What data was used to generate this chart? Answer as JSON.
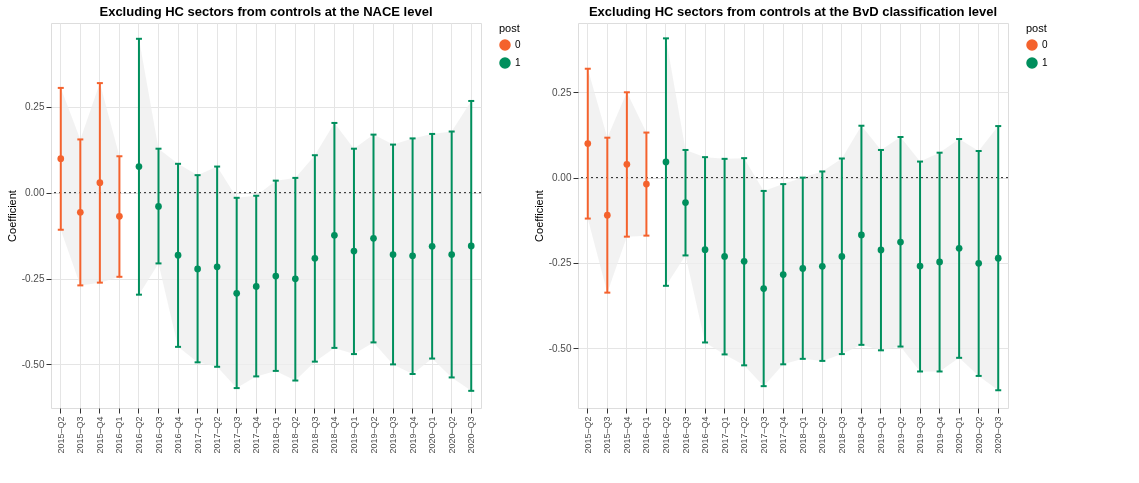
{
  "chart_data": [
    {
      "type": "scatter",
      "title": "Excluding HC sectors from controls at the NACE level",
      "ylabel": "Coefficient",
      "legend_title": "post",
      "legend": "right",
      "grid": true,
      "marker": "circle",
      "categories": [
        "2015–Q2",
        "2015–Q3",
        "2015–Q4",
        "2016–Q1",
        "2016–Q2",
        "2016–Q3",
        "2016–Q4",
        "2017–Q1",
        "2017–Q2",
        "2017–Q3",
        "2017–Q4",
        "2018–Q1",
        "2018–Q2",
        "2018–Q3",
        "2018–Q4",
        "2019–Q1",
        "2019–Q2",
        "2019–Q3",
        "2019–Q4",
        "2020–Q1",
        "2020–Q2",
        "2020–Q3"
      ],
      "ylim": [
        -0.627,
        0.494
      ],
      "yticks": [
        0.25,
        {
          "value": 0,
          "label": "0.00"
        },
        {
          "value": -0.25,
          "label": "-0.25"
        },
        {
          "value": -0.5,
          "label": "-0.50"
        }
      ],
      "ref_lines": [
        {
          "axis": "y",
          "value": 0,
          "line_style": "dotted"
        }
      ],
      "series": [
        {
          "name": "0",
          "color": "#f4622d",
          "values": [
            0.099,
            -0.057,
            0.029,
            -0.069,
            null,
            null,
            null,
            null,
            null,
            null,
            null,
            null,
            null,
            null,
            null,
            null,
            null,
            null,
            null,
            null,
            null,
            null
          ],
          "errors": [
            [
              -0.108,
              0.305
            ],
            [
              -0.27,
              0.155
            ],
            [
              -0.262,
              0.319
            ],
            [
              -0.245,
              0.106
            ],
            null,
            null,
            null,
            null,
            null,
            null,
            null,
            null,
            null,
            null,
            null,
            null,
            null,
            null,
            null,
            null,
            null,
            null
          ],
          "lower": [
            -0.108,
            -0.27,
            -0.262,
            -0.245,
            null,
            null,
            null,
            null,
            null,
            null,
            null,
            null,
            null,
            null,
            null,
            null,
            null,
            null,
            null,
            null,
            null,
            null
          ],
          "upper": [
            0.305,
            0.155,
            0.319,
            0.106,
            null,
            null,
            null,
            null,
            null,
            null,
            null,
            null,
            null,
            null,
            null,
            null,
            null,
            null,
            null,
            null,
            null,
            null
          ]
        },
        {
          "name": "1",
          "color": "#008f5d",
          "values": [
            null,
            null,
            null,
            null,
            0.076,
            -0.04,
            -0.182,
            -0.222,
            -0.216,
            -0.293,
            -0.273,
            -0.243,
            -0.251,
            -0.191,
            -0.124,
            -0.17,
            -0.133,
            -0.18,
            -0.184,
            -0.156,
            -0.18,
            -0.155
          ],
          "errors": [
            null,
            null,
            null,
            null,
            [
              -0.297,
              0.448
            ],
            [
              -0.206,
              0.128
            ],
            [
              -0.449,
              0.084
            ],
            [
              -0.494,
              0.051
            ],
            [
              -0.507,
              0.076
            ],
            [
              -0.569,
              -0.015
            ],
            [
              -0.535,
              -0.009
            ],
            [
              -0.519,
              0.035
            ],
            [
              -0.547,
              0.043
            ],
            [
              -0.492,
              0.109
            ],
            [
              -0.452,
              0.203
            ],
            [
              -0.47,
              0.128
            ],
            [
              -0.436,
              0.169
            ],
            [
              -0.5,
              0.14
            ],
            [
              -0.528,
              0.158
            ],
            [
              -0.483,
              0.171
            ],
            [
              -0.538,
              0.178
            ],
            [
              -0.577,
              0.267
            ]
          ],
          "lower": [
            null,
            null,
            null,
            null,
            -0.297,
            -0.206,
            -0.449,
            -0.494,
            -0.507,
            -0.569,
            -0.535,
            -0.519,
            -0.547,
            -0.492,
            -0.452,
            -0.47,
            -0.436,
            -0.5,
            -0.528,
            -0.483,
            -0.538,
            -0.577
          ],
          "upper": [
            null,
            null,
            null,
            null,
            0.448,
            0.128,
            0.084,
            0.051,
            0.076,
            -0.015,
            -0.009,
            0.035,
            0.043,
            0.109,
            0.203,
            0.128,
            0.169,
            0.14,
            0.158,
            0.171,
            0.178,
            0.267
          ]
        }
      ]
    },
    {
      "type": "scatter",
      "title": "Excluding HC sectors from controls at the BvD classification level",
      "ylabel": "Coefficient",
      "legend_title": "post",
      "legend": "right",
      "grid": true,
      "marker": "circle",
      "categories": [
        "2015–Q2",
        "2015–Q3",
        "2015–Q4",
        "2016–Q1",
        "2016–Q2",
        "2016–Q3",
        "2016–Q4",
        "2017–Q1",
        "2017–Q2",
        "2017–Q3",
        "2017–Q4",
        "2018–Q1",
        "2018–Q2",
        "2018–Q3",
        "2018–Q4",
        "2019–Q1",
        "2019–Q2",
        "2019–Q3",
        "2019–Q4",
        "2020–Q1",
        "2020–Q2",
        "2020–Q3"
      ],
      "ylim": [
        -0.675,
        0.453
      ],
      "yticks": [
        0.25,
        {
          "value": 0,
          "label": "0.00"
        },
        {
          "value": -0.25,
          "label": "-0.25"
        },
        {
          "value": -0.5,
          "label": "-0.50"
        }
      ],
      "ref_lines": [
        {
          "axis": "y",
          "value": 0,
          "line_style": "dotted"
        }
      ],
      "series": [
        {
          "name": "0",
          "color": "#f4622d",
          "values": [
            0.1,
            -0.11,
            0.039,
            -0.019,
            null,
            null,
            null,
            null,
            null,
            null,
            null,
            null,
            null,
            null,
            null,
            null,
            null,
            null,
            null,
            null,
            null,
            null
          ],
          "errors": [
            [
              -0.12,
              0.319
            ],
            [
              -0.337,
              0.117
            ],
            [
              -0.173,
              0.25
            ],
            [
              -0.17,
              0.132
            ],
            null,
            null,
            null,
            null,
            null,
            null,
            null,
            null,
            null,
            null,
            null,
            null,
            null,
            null,
            null,
            null,
            null,
            null
          ],
          "lower": [
            -0.12,
            -0.337,
            -0.173,
            -0.17,
            null,
            null,
            null,
            null,
            null,
            null,
            null,
            null,
            null,
            null,
            null,
            null,
            null,
            null,
            null,
            null,
            null,
            null
          ],
          "upper": [
            0.319,
            0.117,
            0.25,
            0.132,
            null,
            null,
            null,
            null,
            null,
            null,
            null,
            null,
            null,
            null,
            null,
            null,
            null,
            null,
            null,
            null,
            null,
            null
          ]
        },
        {
          "name": "1",
          "color": "#008f5d",
          "values": [
            null,
            null,
            null,
            null,
            0.046,
            -0.073,
            -0.211,
            -0.231,
            -0.245,
            -0.325,
            -0.284,
            -0.266,
            -0.26,
            -0.231,
            -0.168,
            -0.212,
            -0.189,
            -0.259,
            -0.247,
            -0.207,
            -0.251,
            -0.236
          ],
          "errors": [
            null,
            null,
            null,
            null,
            [
              -0.317,
              0.408
            ],
            [
              -0.228,
              0.081
            ],
            [
              -0.483,
              0.06
            ],
            [
              -0.518,
              0.055
            ],
            [
              -0.55,
              0.057
            ],
            [
              -0.611,
              -0.039
            ],
            [
              -0.547,
              -0.019
            ],
            [
              -0.531,
              0.0
            ],
            [
              -0.537,
              0.018
            ],
            [
              -0.517,
              0.056
            ],
            [
              -0.49,
              0.152
            ],
            [
              -0.506,
              0.081
            ],
            [
              -0.495,
              0.119
            ],
            [
              -0.568,
              0.047
            ],
            [
              -0.568,
              0.073
            ],
            [
              -0.528,
              0.113
            ],
            [
              -0.581,
              0.078
            ],
            [
              -0.623,
              0.151
            ]
          ],
          "lower": [
            null,
            null,
            null,
            null,
            -0.317,
            -0.228,
            -0.483,
            -0.518,
            -0.55,
            -0.611,
            -0.547,
            -0.531,
            -0.537,
            -0.517,
            -0.49,
            -0.506,
            -0.495,
            -0.568,
            -0.568,
            -0.528,
            -0.581,
            -0.623
          ],
          "upper": [
            null,
            null,
            null,
            null,
            0.408,
            0.081,
            0.06,
            0.055,
            0.057,
            -0.039,
            -0.019,
            0.0,
            0.018,
            0.056,
            0.152,
            0.081,
            0.119,
            0.047,
            0.073,
            0.113,
            0.078,
            0.151
          ]
        }
      ]
    }
  ]
}
